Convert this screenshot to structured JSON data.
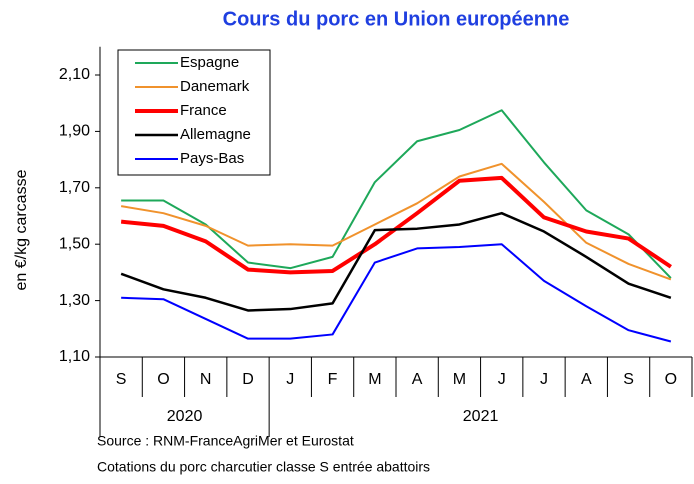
{
  "chart_data": {
    "type": "line",
    "title": "Cours du porc en Union européenne",
    "y_label": "en €/kg carcasse",
    "categories": [
      "S",
      "O",
      "N",
      "D",
      "J",
      "F",
      "M",
      "A",
      "M",
      "J",
      "J",
      "A",
      "S",
      "O"
    ],
    "groups": [
      {
        "label": "2020",
        "count": 4
      },
      {
        "label": "2021",
        "count": 10
      }
    ],
    "ylim": [
      1.1,
      2.2
    ],
    "yticks": [
      {
        "value": 1.1,
        "label": "1,10"
      },
      {
        "value": 1.3,
        "label": "1,30"
      },
      {
        "value": 1.5,
        "label": "1,50"
      },
      {
        "value": 1.7,
        "label": "1,70"
      },
      {
        "value": 1.9,
        "label": "1,90"
      },
      {
        "value": 2.1,
        "label": "2,10"
      }
    ],
    "grid": false,
    "legend": "top-left",
    "series": [
      {
        "name": "Espagne",
        "color": "#1ea85a",
        "width": 2,
        "values": [
          1.655,
          1.655,
          1.57,
          1.435,
          1.415,
          1.455,
          1.72,
          1.865,
          1.905,
          1.975,
          1.79,
          1.62,
          1.535,
          1.38
        ]
      },
      {
        "name": "Danemark",
        "color": "#f0922c",
        "width": 2,
        "values": [
          1.635,
          1.61,
          1.565,
          1.495,
          1.5,
          1.495,
          1.57,
          1.645,
          1.74,
          1.785,
          1.65,
          1.505,
          1.43,
          1.375
        ]
      },
      {
        "name": "France",
        "color": "#ff0000",
        "width": 4,
        "values": [
          1.58,
          1.565,
          1.51,
          1.41,
          1.4,
          1.405,
          1.5,
          1.61,
          1.725,
          1.735,
          1.595,
          1.545,
          1.52,
          1.42
        ]
      },
      {
        "name": "Allemagne",
        "color": "#000000",
        "width": 2.5,
        "values": [
          1.395,
          1.34,
          1.31,
          1.265,
          1.27,
          1.29,
          1.55,
          1.555,
          1.57,
          1.61,
          1.545,
          1.455,
          1.36,
          1.31
        ]
      },
      {
        "name": "Pays-Bas",
        "color": "#0000ff",
        "width": 2,
        "values": [
          1.31,
          1.305,
          1.235,
          1.165,
          1.165,
          1.18,
          1.435,
          1.485,
          1.49,
          1.5,
          1.37,
          1.28,
          1.195,
          1.155
        ]
      }
    ],
    "notes": [
      "Source : RNM-FranceAgriMer et Eurostat",
      "Cotations du porc charcutier classe S entrée abattoirs"
    ]
  }
}
